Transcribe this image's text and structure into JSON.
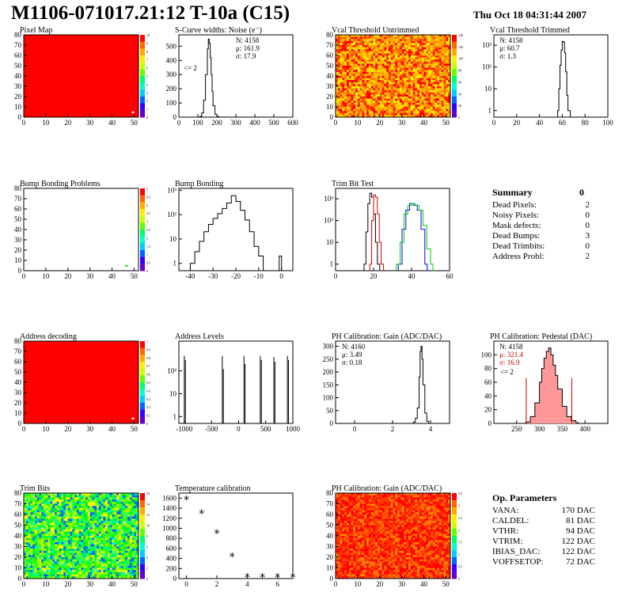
{
  "header": {
    "title": "M1106-071017.21:12 T-10a (C15)",
    "date": "Thu Oct 18 04:31:44 2007"
  },
  "colors": {
    "axis": "#000000",
    "red_fill": "#ff0000",
    "blue_line": "#0000ff",
    "green_line": "#00cc00",
    "dark_red_line": "#cc0000",
    "pink_fill": "#ff9999"
  },
  "chart_data": [
    {
      "id": "pixel-map",
      "type": "heatmap",
      "title": "Pixel Map",
      "xlim": [
        0,
        52
      ],
      "ylim": [
        0,
        80
      ],
      "xticks": [
        0,
        10,
        20,
        30,
        40,
        50
      ],
      "yticks": [
        0,
        10,
        20,
        30,
        40,
        50,
        60,
        70,
        80
      ],
      "fill": "uniform-red",
      "zscale": [
        0,
        10
      ],
      "ztick_labels": [
        "0",
        "1",
        "2",
        "3",
        "4",
        "5",
        "6",
        "7",
        "8",
        "9",
        "10"
      ],
      "dead_pixels": [
        [
          49,
          4
        ]
      ]
    },
    {
      "id": "scurve-noise",
      "type": "histogram",
      "title": "S-Curve widths: Noise (e⁻)",
      "xlim": [
        0,
        600
      ],
      "ylim": [
        0,
        580
      ],
      "ylog": false,
      "xticks": [
        0,
        100,
        200,
        300,
        400,
        500,
        600
      ],
      "yticks": [
        0,
        100,
        200,
        300,
        400,
        500
      ],
      "stats": [
        "N: 4158",
        "μ: 161.9",
        "σ: 17.9"
      ],
      "annotation": "<= 2",
      "x": [
        100,
        110,
        120,
        130,
        140,
        150,
        155,
        160,
        165,
        170,
        175,
        180,
        190,
        200,
        210,
        220
      ],
      "y": [
        0,
        5,
        30,
        120,
        300,
        480,
        550,
        520,
        420,
        300,
        180,
        80,
        20,
        5,
        1,
        0
      ]
    },
    {
      "id": "vcal-untrimmed",
      "type": "heatmap",
      "title": "Vcal Threshold Untrimmed",
      "xlim": [
        0,
        52
      ],
      "ylim": [
        0,
        80
      ],
      "xticks": [
        0,
        10,
        20,
        30,
        40,
        50
      ],
      "yticks": [
        0,
        10,
        20,
        30,
        40,
        50,
        60,
        70,
        80
      ],
      "fill": "noisy-orange",
      "zscale": [
        0,
        140
      ],
      "ztick_labels": [
        "0",
        "20",
        "40",
        "60",
        "80",
        "100",
        "120",
        "140"
      ]
    },
    {
      "id": "vcal-trimmed",
      "type": "histogram",
      "title": "Vcal Threshold Trimmed",
      "xlim": [
        0,
        100
      ],
      "ylim": [
        0.5,
        3000
      ],
      "ylog": true,
      "xticks": [
        0,
        20,
        40,
        60,
        80,
        100
      ],
      "yticks": [
        1,
        10,
        100,
        1000
      ],
      "stats": [
        "N: 4158",
        "μ: 60.7",
        "σ:  1.3"
      ],
      "x": [
        56,
        57,
        58,
        59,
        60,
        61,
        62,
        63,
        64,
        65
      ],
      "y": [
        1,
        10,
        120,
        600,
        1500,
        1400,
        450,
        60,
        5,
        1
      ]
    },
    {
      "id": "bump-problems",
      "type": "heatmap",
      "title": "Bump Bonding Problems",
      "xlim": [
        0,
        52
      ],
      "ylim": [
        0,
        80
      ],
      "xticks": [
        0,
        10,
        20,
        30,
        40,
        50
      ],
      "yticks": [
        0,
        10,
        20,
        30,
        40,
        50,
        60,
        70,
        80
      ],
      "fill": "empty",
      "zscale": [
        0,
        5
      ],
      "ztick_labels": [
        "0",
        "0.5",
        "1",
        "1.5",
        "2",
        "2.5",
        "3",
        "3.5",
        "4",
        "4.5",
        "5"
      ],
      "marks": [
        [
          46,
          4
        ]
      ]
    },
    {
      "id": "bump-bonding",
      "type": "histogram",
      "title": "Bump Bonding",
      "xlim": [
        -45,
        5
      ],
      "ylim": [
        0.5,
        1200
      ],
      "ylog": true,
      "xticks": [
        -40,
        -30,
        -20,
        -10,
        0
      ],
      "yticks": [
        1,
        10,
        100,
        1000
      ],
      "x": [
        -40,
        -38,
        -36,
        -34,
        -32,
        -30,
        -28,
        -26,
        -24,
        -22,
        -20,
        -18,
        -16,
        -14,
        -12,
        -10,
        -8,
        -1
      ],
      "y": [
        1,
        3,
        8,
        20,
        40,
        70,
        110,
        180,
        300,
        600,
        350,
        150,
        60,
        20,
        5,
        2,
        0,
        2
      ]
    },
    {
      "id": "trim-bit-test",
      "type": "histogram",
      "title": "Trim Bit Test",
      "xlim": [
        0,
        60
      ],
      "ylim": [
        0.5,
        3000
      ],
      "ylog": true,
      "xticks": [
        0,
        20,
        40,
        60
      ],
      "yticks": [
        1,
        10,
        100,
        1000
      ],
      "series": [
        {
          "color": "#000000",
          "x": [
            15,
            16,
            17,
            18,
            19,
            20,
            21,
            22
          ],
          "y": [
            1,
            30,
            600,
            1800,
            1200,
            200,
            10,
            1
          ]
        },
        {
          "color": "#cc0000",
          "x": [
            18,
            19,
            20,
            21,
            22,
            23,
            24
          ],
          "y": [
            1,
            100,
            1500,
            1200,
            200,
            10,
            1
          ]
        },
        {
          "color": "#0000ff",
          "x": [
            33,
            35,
            37,
            39,
            41,
            43,
            45,
            47
          ],
          "y": [
            1,
            40,
            300,
            600,
            500,
            300,
            40,
            1
          ]
        },
        {
          "color": "#00cc00",
          "x": [
            32,
            34,
            36,
            38,
            40,
            42,
            44,
            46,
            48,
            50
          ],
          "y": [
            1,
            10,
            200,
            500,
            600,
            500,
            300,
            60,
            5,
            1
          ]
        }
      ]
    },
    {
      "id": "address-decoding",
      "type": "heatmap",
      "title": "Address decoding",
      "xlim": [
        0,
        52
      ],
      "ylim": [
        0,
        80
      ],
      "xticks": [
        0,
        10,
        20,
        30,
        40,
        50
      ],
      "yticks": [
        0,
        10,
        20,
        30,
        40,
        50,
        60,
        70,
        80
      ],
      "fill": "uniform-red",
      "zscale": [
        0,
        1
      ],
      "ztick_labels": [
        "0",
        "0.1",
        "0.2",
        "0.3",
        "0.4",
        "0.5",
        "0.6",
        "0.7",
        "0.8",
        "0.9",
        "1"
      ],
      "dead_pixels": [
        [
          49,
          4
        ]
      ]
    },
    {
      "id": "address-levels",
      "type": "histogram",
      "title": "Address Levels",
      "xlim": [
        -1100,
        1000
      ],
      "ylim": [
        0.5,
        2000
      ],
      "ylog": true,
      "xticks": [
        -1000,
        -500,
        0,
        500,
        1000
      ],
      "yticks": [
        1,
        10,
        100
      ],
      "spikes": [
        [
          -1000,
          450
        ],
        [
          -980,
          300
        ],
        [
          -300,
          450
        ],
        [
          -280,
          120
        ],
        [
          100,
          450
        ],
        [
          120,
          200
        ],
        [
          400,
          450
        ],
        [
          420,
          300
        ],
        [
          650,
          400
        ],
        [
          670,
          250
        ],
        [
          900,
          450
        ],
        [
          920,
          300
        ]
      ]
    },
    {
      "id": "ph-gain",
      "type": "histogram",
      "title": "PH Calibration: Gain (ADC/DAC)",
      "xlim": [
        -1,
        5
      ],
      "ylim": [
        0,
        320
      ],
      "ylog": false,
      "xticks": [
        0,
        2,
        4
      ],
      "yticks": [
        0,
        50,
        100,
        150,
        200,
        250,
        300
      ],
      "stats": [
        "N: 4160",
        "μ: 3.49",
        "σ: 0.18"
      ],
      "x": [
        3.0,
        3.1,
        3.2,
        3.3,
        3.4,
        3.45,
        3.5,
        3.55,
        3.6,
        3.7,
        3.8,
        3.9
      ],
      "y": [
        0,
        5,
        20,
        60,
        180,
        280,
        300,
        250,
        150,
        40,
        8,
        0
      ]
    },
    {
      "id": "ph-pedestal",
      "type": "histogram",
      "title": "PH Calibration: Pedestal (DAC)",
      "xlim": [
        200,
        450
      ],
      "ylim": [
        0,
        120
      ],
      "ylog": false,
      "xticks": [
        250,
        300,
        350,
        400
      ],
      "yticks": [
        0,
        20,
        40,
        60,
        80,
        100
      ],
      "stats": [
        "N: 4158",
        "μ: 321.4",
        "σ: 16.9"
      ],
      "annotation": "<= 2",
      "cut_lines": [
        271,
        371
      ],
      "x": [
        270,
        280,
        290,
        300,
        305,
        310,
        315,
        320,
        325,
        330,
        335,
        340,
        350,
        360,
        370,
        380
      ],
      "y": [
        2,
        10,
        30,
        60,
        80,
        95,
        105,
        110,
        100,
        85,
        70,
        50,
        25,
        10,
        4,
        1
      ]
    },
    {
      "id": "trim-bits",
      "type": "heatmap",
      "title": "Trim Bits",
      "xlim": [
        0,
        52
      ],
      "ylim": [
        0,
        80
      ],
      "xticks": [
        0,
        10,
        20,
        30,
        40,
        50
      ],
      "yticks": [
        0,
        10,
        20,
        30,
        40,
        50,
        60,
        70,
        80
      ],
      "fill": "noisy-green",
      "zscale": [
        0,
        16
      ],
      "ztick_labels": [
        "0",
        "2",
        "4",
        "6",
        "8",
        "10",
        "12",
        "14",
        "16"
      ]
    },
    {
      "id": "temperature-calibration",
      "type": "scatter",
      "title": "Temperature calibration",
      "xlim": [
        -0.5,
        7
      ],
      "ylim": [
        0,
        1700
      ],
      "ylog": false,
      "xticks": [
        0,
        2,
        4,
        6
      ],
      "yticks": [
        0,
        200,
        400,
        600,
        800,
        1000,
        1200,
        1400,
        1600
      ],
      "x": [
        0,
        1,
        2,
        3,
        4,
        5,
        6,
        7
      ],
      "y": [
        1570,
        1290,
        900,
        430,
        20,
        20,
        20,
        20
      ]
    },
    {
      "id": "ph-gain-map",
      "type": "heatmap",
      "title": "PH Calibration: Gain (ADC/DAC)",
      "xlim": [
        0,
        52
      ],
      "ylim": [
        0,
        80
      ],
      "xticks": [
        0,
        10,
        20,
        30,
        40,
        50
      ],
      "yticks": [
        0,
        10,
        20,
        30,
        40,
        50,
        60,
        70,
        80
      ],
      "fill": "noisy-red",
      "zscale": [
        0,
        4
      ],
      "ztick_labels": [
        "0",
        "0.5",
        "1",
        "1.5",
        "2",
        "2.5",
        "3",
        "3.5"
      ]
    }
  ],
  "summary": {
    "title": "Summary",
    "value": "0",
    "rows": [
      {
        "label": "Dead Pixels:",
        "value": "2"
      },
      {
        "label": "Noisy Pixels:",
        "value": "0"
      },
      {
        "label": "Mask defects:",
        "value": "0"
      },
      {
        "label": "Dead Bumps:",
        "value": "3"
      },
      {
        "label": "Dead Trimbits:",
        "value": "0"
      },
      {
        "label": "Address Probl:",
        "value": "2"
      }
    ]
  },
  "op_params": {
    "title": "Op. Parameters",
    "rows": [
      {
        "label": "VANA:",
        "value": "170 DAC"
      },
      {
        "label": "CALDEL:",
        "value": "81 DAC"
      },
      {
        "label": "VTHR:",
        "value": "94 DAC"
      },
      {
        "label": "VTRIM:",
        "value": "122 DAC"
      },
      {
        "label": "IBIAS_DAC:",
        "value": "122 DAC"
      },
      {
        "label": "VOFFSETOP:",
        "value": "72 DAC"
      }
    ]
  }
}
